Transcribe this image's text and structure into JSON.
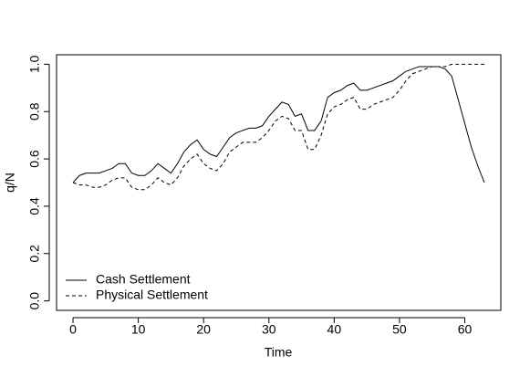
{
  "chart_data": {
    "type": "line",
    "x_label": "Time",
    "y_label": "q/N",
    "x": [
      0,
      1,
      2,
      3,
      4,
      5,
      6,
      7,
      8,
      9,
      10,
      11,
      12,
      13,
      14,
      15,
      16,
      17,
      18,
      19,
      20,
      21,
      22,
      23,
      24,
      25,
      26,
      27,
      28,
      29,
      30,
      31,
      32,
      33,
      34,
      35,
      36,
      37,
      38,
      39,
      40,
      41,
      42,
      43,
      44,
      45,
      46,
      47,
      48,
      49,
      50,
      51,
      52,
      53,
      54,
      55,
      56,
      57,
      58,
      59,
      60,
      61,
      62,
      63
    ],
    "series": [
      {
        "name": "Cash Settlement",
        "color": "#000000",
        "dash": "solid",
        "values": [
          0.5,
          0.53,
          0.54,
          0.54,
          0.54,
          0.55,
          0.56,
          0.58,
          0.58,
          0.54,
          0.53,
          0.53,
          0.55,
          0.58,
          0.56,
          0.54,
          0.58,
          0.63,
          0.66,
          0.68,
          0.64,
          0.62,
          0.61,
          0.65,
          0.69,
          0.71,
          0.72,
          0.73,
          0.73,
          0.74,
          0.78,
          0.81,
          0.84,
          0.83,
          0.78,
          0.79,
          0.72,
          0.72,
          0.76,
          0.86,
          0.88,
          0.89,
          0.91,
          0.92,
          0.89,
          0.89,
          0.9,
          0.91,
          0.92,
          0.93,
          0.95,
          0.97,
          0.98,
          0.99,
          0.99,
          0.99,
          0.99,
          0.98,
          0.95,
          0.85,
          0.75,
          0.65,
          0.57,
          0.5
        ]
      },
      {
        "name": "Physical Settlement",
        "color": "#000000",
        "dash": "dashed",
        "values": [
          0.5,
          0.49,
          0.49,
          0.48,
          0.48,
          0.49,
          0.51,
          0.52,
          0.52,
          0.48,
          0.47,
          0.47,
          0.49,
          0.52,
          0.5,
          0.49,
          0.52,
          0.57,
          0.6,
          0.62,
          0.58,
          0.56,
          0.55,
          0.58,
          0.63,
          0.65,
          0.67,
          0.67,
          0.67,
          0.69,
          0.72,
          0.76,
          0.78,
          0.77,
          0.72,
          0.72,
          0.64,
          0.64,
          0.7,
          0.79,
          0.82,
          0.83,
          0.85,
          0.86,
          0.81,
          0.81,
          0.83,
          0.84,
          0.85,
          0.86,
          0.89,
          0.93,
          0.96,
          0.97,
          0.98,
          0.99,
          0.99,
          0.99,
          1.0,
          1.0,
          1.0,
          1.0,
          1.0,
          1.0
        ]
      }
    ],
    "xlim": [
      -2.52,
      65.52
    ],
    "ylim": [
      -0.04,
      1.04
    ],
    "xticks": [
      0,
      10,
      20,
      30,
      40,
      50,
      60
    ],
    "yticks": [
      {
        "value": 0,
        "label": "0.0"
      },
      0.2,
      0.4,
      0.6,
      0.8,
      {
        "value": 1,
        "label": "1.0"
      }
    ],
    "legend": "bottom-left",
    "grid": false
  }
}
